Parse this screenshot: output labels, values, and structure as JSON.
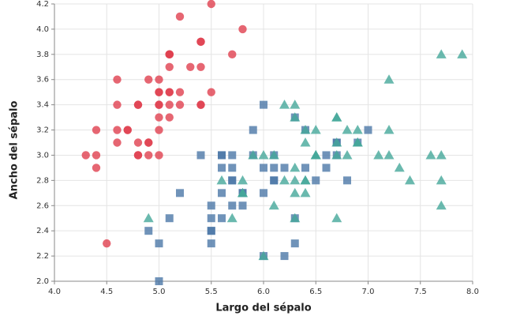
{
  "chart_data": {
    "type": "scatter",
    "x_label": "Largo del sépalo",
    "y_label": "Ancho del sépalo",
    "xlim": [
      4.0,
      8.0
    ],
    "ylim": [
      2.0,
      4.2
    ],
    "xticks": [
      {
        "value": 4,
        "label": "4.0"
      },
      4.5,
      {
        "value": 5,
        "label": "5.0"
      },
      5.5,
      {
        "value": 6,
        "label": "6.0"
      },
      6.5,
      {
        "value": 7,
        "label": "7.0"
      },
      7.5,
      {
        "value": 8,
        "label": "8.0"
      }
    ],
    "yticks": [
      {
        "value": 2,
        "label": "2.0"
      },
      2.2,
      2.4,
      2.6,
      2.8,
      {
        "value": 3,
        "label": "3.0"
      },
      3.2,
      3.4,
      3.6,
      3.8,
      {
        "value": 4,
        "label": "4.0"
      },
      4.2
    ],
    "grid": true,
    "series": [
      {
        "color": "#e0404f",
        "marker": "circle",
        "x": [
          5.1,
          4.9,
          4.7,
          4.6,
          5.0,
          5.4,
          4.6,
          5.0,
          4.4,
          4.9,
          5.4,
          4.8,
          4.8,
          4.3,
          5.8,
          5.4,
          5.1,
          5.7,
          5.1,
          5.4,
          5.1,
          4.6,
          5.1,
          4.8,
          5.0,
          5.0,
          5.2,
          5.2,
          4.7,
          4.8,
          5.4,
          5.2,
          5.5,
          4.9,
          5.0,
          5.5,
          4.9,
          4.4,
          5.1,
          5.0,
          4.5,
          4.4,
          5.0,
          5.1,
          4.8,
          5.1,
          4.6,
          5.3,
          5.0
        ],
        "values": [
          3.5,
          3.0,
          3.2,
          3.1,
          3.6,
          3.9,
          3.4,
          3.4,
          2.9,
          3.1,
          3.7,
          3.4,
          3.0,
          3.0,
          4.0,
          3.9,
          3.5,
          3.8,
          3.8,
          3.4,
          3.7,
          3.6,
          3.3,
          3.4,
          3.0,
          3.4,
          3.5,
          3.4,
          3.2,
          3.1,
          3.4,
          4.1,
          4.2,
          3.1,
          3.2,
          3.5,
          3.6,
          3.0,
          3.4,
          3.5,
          2.3,
          3.2,
          3.5,
          3.8,
          3.0,
          3.8,
          3.2,
          3.7,
          3.3
        ]
      },
      {
        "color": "#4c78a8",
        "marker": "square",
        "x": [
          7.0,
          6.4,
          6.9,
          5.5,
          6.5,
          5.7,
          6.3,
          4.9,
          6.6,
          5.2,
          5.0,
          5.9,
          6.0,
          6.1,
          5.6,
          6.7,
          5.6,
          5.8,
          6.2,
          5.6,
          5.9,
          6.1,
          6.3,
          6.1,
          6.4,
          6.6,
          6.8,
          6.7,
          6.0,
          5.7,
          5.5,
          5.5,
          5.8,
          6.0,
          5.4,
          6.0,
          6.7,
          6.3,
          5.6,
          5.5,
          5.5,
          6.1,
          5.8,
          5.0,
          5.6,
          5.7,
          5.7,
          6.2,
          5.1,
          5.7
        ],
        "values": [
          3.2,
          3.2,
          3.1,
          2.3,
          2.8,
          2.8,
          3.3,
          2.4,
          2.9,
          2.7,
          2.0,
          3.0,
          2.2,
          2.9,
          2.9,
          3.1,
          3.0,
          2.7,
          2.2,
          2.5,
          3.2,
          2.8,
          2.5,
          2.8,
          2.9,
          3.0,
          2.8,
          3.0,
          2.9,
          2.6,
          2.4,
          2.4,
          2.7,
          2.7,
          3.0,
          3.4,
          3.1,
          2.3,
          3.0,
          2.5,
          2.6,
          3.0,
          2.6,
          2.3,
          2.7,
          3.0,
          2.9,
          2.9,
          2.5,
          2.8
        ]
      },
      {
        "color": "#45a89a",
        "marker": "triangle",
        "x": [
          6.3,
          5.8,
          7.1,
          6.3,
          6.5,
          7.6,
          4.9,
          7.3,
          6.7,
          7.2,
          6.5,
          6.4,
          6.8,
          5.7,
          5.8,
          6.4,
          6.5,
          7.7,
          7.7,
          6.0,
          6.9,
          5.6,
          7.7,
          6.3,
          6.7,
          7.2,
          6.2,
          6.1,
          6.4,
          7.2,
          7.4,
          7.9,
          6.4,
          6.3,
          6.1,
          7.7,
          6.3,
          6.4,
          6.0,
          6.9,
          6.7,
          6.9,
          5.8,
          6.8,
          6.7,
          6.7,
          6.3,
          6.5,
          6.2,
          5.9
        ],
        "values": [
          3.3,
          2.7,
          3.0,
          2.9,
          3.0,
          3.0,
          2.5,
          2.9,
          2.5,
          3.6,
          3.2,
          2.7,
          3.0,
          2.5,
          2.8,
          3.2,
          3.0,
          3.8,
          2.6,
          2.2,
          3.2,
          2.8,
          2.8,
          2.7,
          3.3,
          3.2,
          2.8,
          3.0,
          2.8,
          3.0,
          2.8,
          3.8,
          2.8,
          2.8,
          2.6,
          3.0,
          3.4,
          3.1,
          3.0,
          3.1,
          3.1,
          3.1,
          2.7,
          3.2,
          3.3,
          3.0,
          2.5,
          3.0,
          3.4,
          3.0
        ]
      }
    ]
  }
}
